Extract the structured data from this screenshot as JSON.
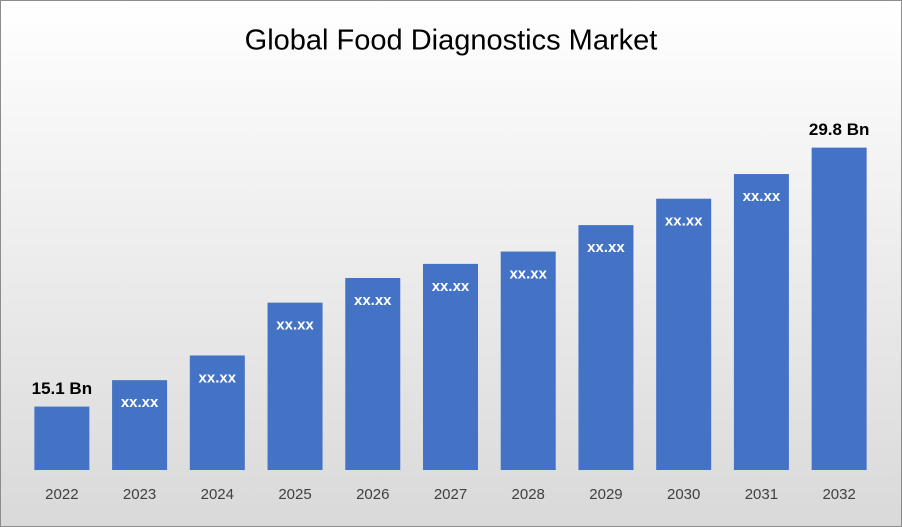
{
  "chart_data": {
    "type": "bar",
    "title": "Global Food Diagnostics Market",
    "categories": [
      "2022",
      "2023",
      "2024",
      "2025",
      "2026",
      "2027",
      "2028",
      "2029",
      "2030",
      "2031",
      "2032"
    ],
    "values": [
      15.1,
      16.6,
      18.0,
      21.0,
      22.4,
      23.2,
      23.9,
      25.4,
      26.9,
      28.3,
      29.8
    ],
    "value_labels": [
      "15.1 Bn",
      "xx.xx",
      "xx.xx",
      "xx.xx",
      "xx.xx",
      "xx.xx",
      "xx.xx",
      "xx.xx",
      "xx.xx",
      "xx.xx",
      "29.8 Bn"
    ],
    "color": "#4472c4",
    "ylim": [
      11.5,
      30.8
    ]
  }
}
